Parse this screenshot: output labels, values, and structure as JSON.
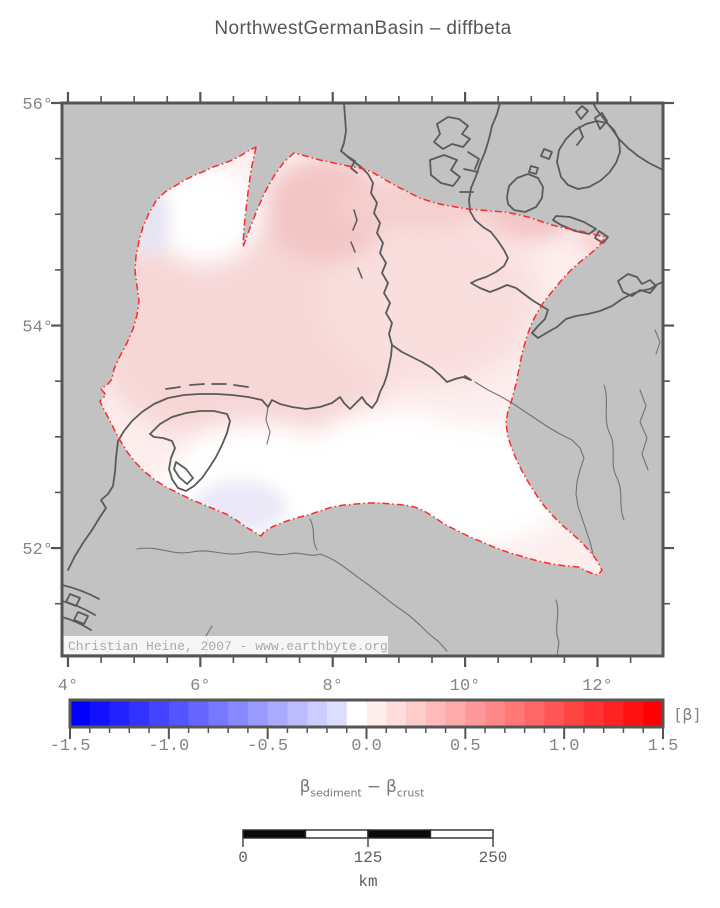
{
  "title": "NorthwestGermanBasin – diffbeta",
  "map": {
    "watermark": "Christian Heine, 2007 - www.earthbyte.org",
    "x_axis": {
      "tick_values": [
        4,
        6,
        8,
        10,
        12
      ],
      "tick_labels": [
        "4°",
        "6°",
        "8°",
        "10°",
        "12°"
      ],
      "minor_step_deg": 0.5,
      "lon_min": 3.91,
      "lon_max": 12.99
    },
    "y_axis": {
      "tick_values": [
        56,
        54,
        52
      ],
      "tick_labels": [
        "56°",
        "54°",
        "52°"
      ],
      "minor_step_deg": 0.5,
      "lat_min": 51.03,
      "lat_max": 56.0
    }
  },
  "colorbar": {
    "unit": "[β]",
    "min": -1.5,
    "max": 1.5,
    "step": 0.1,
    "tick_values": [
      -1.5,
      -1.0,
      -0.5,
      0.0,
      0.5,
      1.0,
      1.5
    ],
    "tick_labels": [
      "-1.5",
      "-1.0",
      "-0.5",
      "0.0",
      "0.5",
      "1.0",
      "1.5"
    ],
    "color_min": "#0000ff",
    "color_mid": "#ffffff",
    "color_max": "#ff0000"
  },
  "caption": {
    "symbol1": "β",
    "sub1": "sediment",
    "operator": "−",
    "symbol2": "β",
    "sub2": "crust"
  },
  "scalebar": {
    "tick_values_km": [
      0,
      125,
      250
    ],
    "tick_labels": [
      "0",
      "125",
      "250"
    ],
    "unit_label": "km",
    "length_km": 250,
    "segments": 4
  },
  "colors": {
    "background_gray": "#c2c2c2",
    "frame": "#555555",
    "coastline": "#5a5a5a",
    "river": "#737373",
    "basin_base": "#fdeeee",
    "basin_outline_red": "#ff2a2a"
  }
}
